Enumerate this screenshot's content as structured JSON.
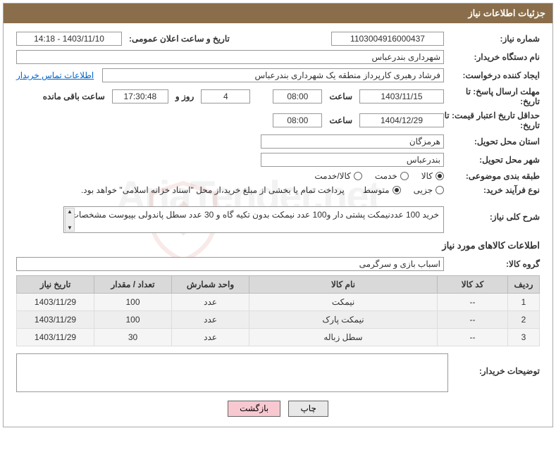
{
  "header": {
    "title": "جزئیات اطلاعات نیاز"
  },
  "fields": {
    "need_no_label": "شماره نیاز:",
    "need_no": "1103004916000437",
    "announce_label": "تاریخ و ساعت اعلان عمومی:",
    "announce_val": "1403/11/10 - 14:18",
    "buyer_org_label": "نام دستگاه خریدار:",
    "buyer_org": "شهرداری بندرعباس",
    "requester_label": "ایجاد کننده درخواست:",
    "requester": "فرشاد رهبری کارپرداز منطقه یک شهرداری بندرعباس",
    "contact_link": "اطلاعات تماس خریدار",
    "deadline_label": "مهلت ارسال پاسخ: تا تاریخ:",
    "deadline_date": "1403/11/15",
    "time_label": "ساعت",
    "deadline_time": "08:00",
    "days_val": "4",
    "days_label": "روز و",
    "countdown": "17:30:48",
    "remain_label": "ساعت باقی مانده",
    "valid_label": "حداقل تاریخ اعتبار قیمت: تا تاریخ:",
    "valid_date": "1404/12/29",
    "valid_time": "08:00",
    "province_label": "استان محل تحویل:",
    "province": "هرمزگان",
    "city_label": "شهر محل تحویل:",
    "city": "بندرعباس",
    "category_label": "طبقه بندی موضوعی:",
    "process_label": "نوع فرآیند خرید:",
    "payment_note": "پرداخت تمام یا بخشی از مبلغ خرید،از محل \"اسناد خزانه اسلامی\" خواهد بود.",
    "desc_label": "شرح کلی نیاز:",
    "desc_text": "خرید 100 عددنیمکت پشتی دار و100 عدد نیمکت بدون تکیه گاه و 30 عدد سطل پاندولی بپیوست مشخصات",
    "group_label": "گروه کالا:",
    "group_val": "اسباب بازی و سرگرمی",
    "section_title": "اطلاعات کالاهای مورد نیاز",
    "buyer_notes_label": "توضیحات خریدار:"
  },
  "radios": {
    "cat": [
      {
        "label": "کالا",
        "checked": true
      },
      {
        "label": "خدمت",
        "checked": false
      },
      {
        "label": "کالا/خدمت",
        "checked": false
      }
    ],
    "proc": [
      {
        "label": "جزیی",
        "checked": false
      },
      {
        "label": "متوسط",
        "checked": true
      }
    ]
  },
  "table": {
    "headers": [
      "ردیف",
      "کد کالا",
      "نام کالا",
      "واحد شمارش",
      "تعداد / مقدار",
      "تاریخ نیاز"
    ],
    "rows": [
      [
        "1",
        "--",
        "نیمکت",
        "عدد",
        "100",
        "1403/11/29"
      ],
      [
        "2",
        "--",
        "نیمکت پارک",
        "عدد",
        "100",
        "1403/11/29"
      ],
      [
        "3",
        "--",
        "سطل زباله",
        "عدد",
        "30",
        "1403/11/29"
      ]
    ]
  },
  "buttons": {
    "print": "چاپ",
    "back": "بازگشت"
  },
  "colors": {
    "header_bg": "#8a6e4b",
    "th_bg": "#d9d9d9",
    "btn_back_bg": "#f8c8d0"
  }
}
